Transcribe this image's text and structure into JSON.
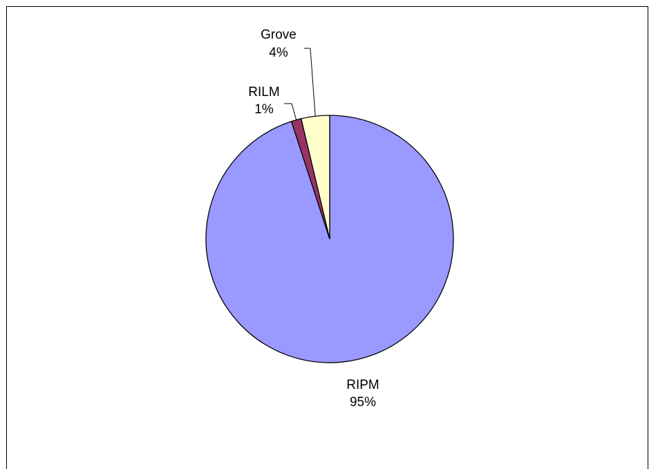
{
  "chart_data": {
    "type": "pie",
    "title": "",
    "slices": [
      {
        "name": "RIPM",
        "value": 95,
        "label_pct": "95%",
        "color": "#9999ff"
      },
      {
        "name": "RILM",
        "value": 1.3,
        "label_pct": "1%",
        "color": "#993366"
      },
      {
        "name": "Grove",
        "value": 3.7,
        "label_pct": "4%",
        "color": "#ffffcc"
      }
    ],
    "legend": "none",
    "stroke_color": "#000000"
  }
}
